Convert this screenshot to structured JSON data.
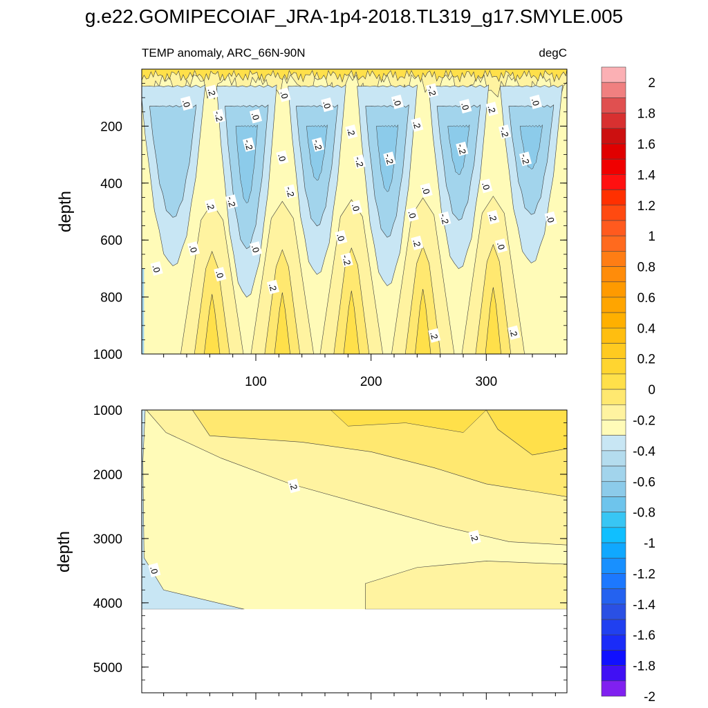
{
  "chart_data": {
    "type": "contour",
    "title": "g.e22.GOMIPECOIAF_JRA-1p4-2018.TL319_g17.SMYLE.005",
    "subtitle_left": "TEMP anomaly, ARC_66N-90N",
    "subtitle_right": "degC",
    "xlim": [
      1,
      370
    ],
    "panels": [
      {
        "name": "upper",
        "ylabel": "depth",
        "ylim": [
          1000,
          0
        ],
        "yticks": [
          200,
          400,
          600,
          800,
          1000
        ],
        "yticklabels": [
          "200",
          "400",
          "600",
          "800",
          "1000"
        ],
        "xticks": [
          100,
          200,
          300
        ],
        "xticklabels": [
          "100",
          "200",
          "300"
        ],
        "contour_labels": [
          {
            "text": ".2",
            "x": 62,
            "y": 80
          },
          {
            "text": ".0",
            "x": 40,
            "y": 120
          },
          {
            "text": "-.2",
            "x": 68,
            "y": 165
          },
          {
            "text": ".0",
            "x": 125,
            "y": 90
          },
          {
            "text": ".0",
            "x": 162,
            "y": 125
          },
          {
            "text": ".0",
            "x": 223,
            "y": 115
          },
          {
            "text": "-.2",
            "x": 253,
            "y": 75
          },
          {
            "text": ".0",
            "x": 282,
            "y": 130
          },
          {
            "text": ".2",
            "x": 305,
            "y": 140
          },
          {
            "text": ".0",
            "x": 343,
            "y": 115
          },
          {
            "text": ".0",
            "x": 100,
            "y": 165
          },
          {
            "text": "-.2",
            "x": 94,
            "y": 265
          },
          {
            "text": ".0",
            "x": 123,
            "y": 310
          },
          {
            "text": "-.2",
            "x": 154,
            "y": 265
          },
          {
            "text": ".2",
            "x": 183,
            "y": 220
          },
          {
            "text": "-.2",
            "x": 190,
            "y": 325
          },
          {
            "text": "-.2",
            "x": 216,
            "y": 315
          },
          {
            "text": ".2",
            "x": 240,
            "y": 195
          },
          {
            "text": "-.2",
            "x": 279,
            "y": 280
          },
          {
            "text": "-.2",
            "x": 316,
            "y": 220
          },
          {
            "text": "-.2",
            "x": 334,
            "y": 315
          },
          {
            "text": "-.2",
            "x": 79,
            "y": 465
          },
          {
            "text": "-.2",
            "x": 130,
            "y": 430
          },
          {
            "text": ".2",
            "x": 61,
            "y": 480
          },
          {
            "text": ".0",
            "x": 187,
            "y": 485
          },
          {
            "text": ".0",
            "x": 248,
            "y": 425
          },
          {
            "text": ".0",
            "x": 300,
            "y": 410
          },
          {
            "text": "-.2",
            "x": 264,
            "y": 525
          },
          {
            "text": ".2",
            "x": 306,
            "y": 520
          },
          {
            "text": ".0",
            "x": 236,
            "y": 510
          },
          {
            "text": ".0",
            "x": 356,
            "y": 525
          },
          {
            "text": ".0",
            "x": 46,
            "y": 630
          },
          {
            "text": ".0",
            "x": 174,
            "y": 590
          },
          {
            "text": ".0",
            "x": 100,
            "y": 630
          },
          {
            "text": ".2",
            "x": 240,
            "y": 610
          },
          {
            "text": ".0",
            "x": 313,
            "y": 620
          },
          {
            "text": ".0",
            "x": 14,
            "y": 700
          },
          {
            "text": "-.2",
            "x": 179,
            "y": 670
          },
          {
            "text": ".0",
            "x": 69,
            "y": 720
          },
          {
            "text": ".2",
            "x": 115,
            "y": 765
          },
          {
            "text": ".2",
            "x": 255,
            "y": 935
          },
          {
            "text": ".2",
            "x": 324,
            "y": 925
          }
        ]
      },
      {
        "name": "lower",
        "ylabel": "depth",
        "ylim": [
          5400,
          1000
        ],
        "yticks": [
          1000,
          2000,
          3000,
          4000,
          5000
        ],
        "yticklabels": [
          "1000",
          "2000",
          "3000",
          "4000",
          "5000"
        ],
        "xticks": [
          100,
          200,
          300
        ],
        "xticklabels": [],
        "bottom_depth": 4100,
        "contour_labels": [
          {
            "text": ".2",
            "x": 133,
            "y": 2180
          },
          {
            "text": ".2",
            "x": 290,
            "y": 2980
          },
          {
            "text": ".0",
            "x": 12,
            "y": 3490
          }
        ]
      }
    ],
    "colorbar": {
      "levels": [
        "-2",
        "-1.9",
        "-1.8",
        "-1.7",
        "-1.6",
        "-1.5",
        "-1.4",
        "-1.3",
        "-1.2",
        "-1.1",
        "-1",
        "-0.9",
        "-0.8",
        "-0.7",
        "-0.6",
        "-0.5",
        "-0.4",
        "-0.3",
        "-0.2",
        "-0.1",
        "0",
        "0.1",
        "0.2",
        "0.3",
        "0.4",
        "0.5",
        "0.6",
        "0.7",
        "0.8",
        "0.9",
        "1",
        "1.1",
        "1.2",
        "1.3",
        "1.4",
        "1.5",
        "1.6",
        "1.7",
        "1.8",
        "1.9",
        "2"
      ],
      "labels": [
        "2",
        "1.8",
        "1.6",
        "1.4",
        "1.2",
        "1",
        "0.8",
        "0.6",
        "0.4",
        "0.2",
        "0",
        "-0.2",
        "-0.4",
        "-0.6",
        "-0.8",
        "-1",
        "-1.2",
        "-1.4",
        "-1.6",
        "-1.8",
        "-2"
      ],
      "colors_top_to_bottom": [
        "#fbb0b4",
        "#f08080",
        "#e05050",
        "#d83030",
        "#cc1010",
        "#e00000",
        "#f00000",
        "#ff1010",
        "#ff3000",
        "#ff4a10",
        "#ff5a1e",
        "#ff6a1e",
        "#ff7d14",
        "#ff8c0a",
        "#ff9a00",
        "#ffa500",
        "#ffb000",
        "#ffbe10",
        "#ffca20",
        "#ffd530",
        "#ffe04a",
        "#ffe870",
        "#fff3a0",
        "#fffbb8",
        "#c8e6f4",
        "#b4dcee",
        "#a2d4ec",
        "#8ccbea",
        "#6ec4ec",
        "#38c6f4",
        "#10bfff",
        "#10a8ff",
        "#1890ff",
        "#1c78ff",
        "#2462f0",
        "#2a50e4",
        "#2040f0",
        "#1a2cf8",
        "#1010ff",
        "#4010f4",
        "#8020f0"
      ]
    },
    "fill_colors": {
      "neg_0_2": "#c8e6f4",
      "neg_2_4": "#a2d4ec",
      "neg_4_6": "#8ccbea",
      "pos_0_2": "#fffbb8",
      "pos_2_4": "#fff3a0",
      "pos_4_6": "#ffe870",
      "pos_6_8": "#ffe04a",
      "pos_8_10": "#ffd530"
    }
  }
}
